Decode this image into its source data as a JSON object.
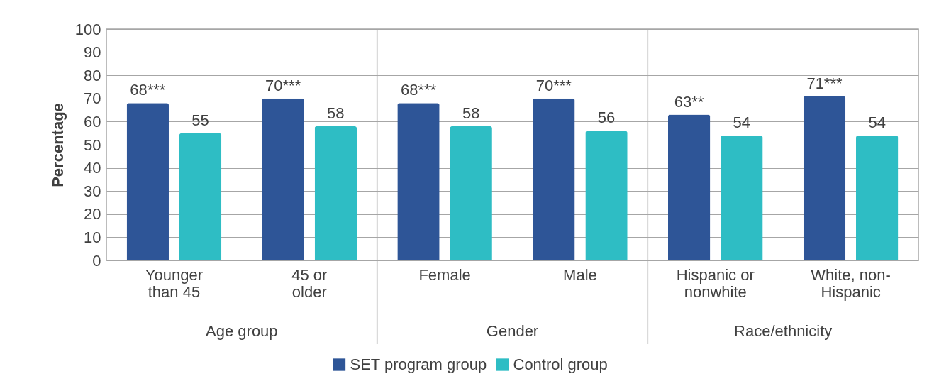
{
  "chart_data": {
    "type": "bar",
    "ylabel": "Percentage",
    "categories": [
      "Younger than 45",
      "45 or older",
      "Female",
      "Male",
      "Hispanic or nonwhite",
      "White, non-Hispanic"
    ],
    "series": [
      {
        "name": "SET program group",
        "color": "#2e5597",
        "values": [
          68,
          70,
          68,
          70,
          63,
          71
        ],
        "value_labels": [
          "68***",
          "70***",
          "68***",
          "70***",
          "63**",
          "71***"
        ]
      },
      {
        "name": "Control group",
        "color": "#2ebdc4",
        "values": [
          55,
          58,
          58,
          56,
          54,
          54
        ],
        "value_labels": [
          "55",
          "58",
          "58",
          "56",
          "54",
          "54"
        ]
      }
    ],
    "annotations": [
      "Age group",
      "Gender",
      "Race/ethnicity"
    ],
    "ylim": [
      0,
      100
    ],
    "yticks": [
      0,
      10,
      20,
      30,
      40,
      50,
      60,
      70,
      80,
      90,
      100
    ],
    "grid": "y",
    "legend": "bottom"
  }
}
